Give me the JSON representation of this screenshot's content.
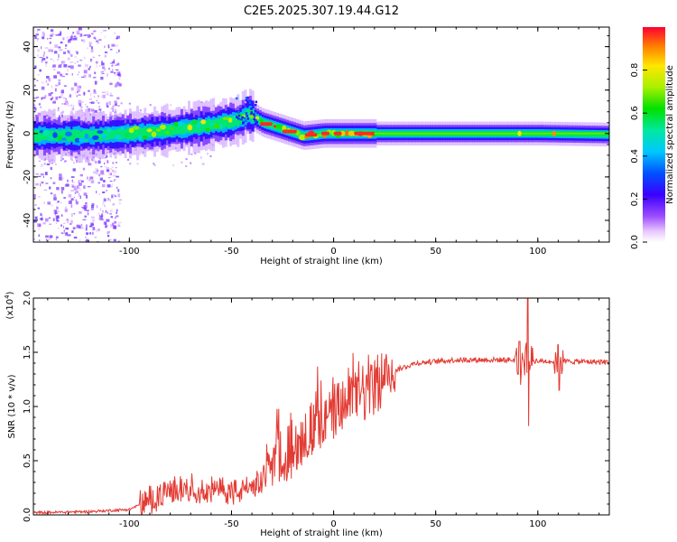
{
  "title": "C2E5.2025.307.19.44.G12",
  "chart_data": [
    {
      "type": "heatmap",
      "xlabel": "Height of straight line (km)",
      "ylabel": "Frequency (Hz)",
      "xlim": [
        -147,
        135
      ],
      "ylim": [
        -50,
        49
      ],
      "x_ticks": [
        -100,
        -50,
        0,
        50,
        100
      ],
      "y_ticks": [
        -40,
        -20,
        0,
        20,
        40
      ],
      "colorbar": {
        "label": "Normalized spectral amplitude",
        "range": [
          0.0,
          1.0
        ],
        "ticks": [
          "0.0",
          "0.2",
          "0.4",
          "0.6",
          "0.8"
        ],
        "tick_values": [
          0.0,
          0.2,
          0.4,
          0.6,
          0.8
        ]
      },
      "ridge_centroid": [
        {
          "x": -145,
          "y": -1
        },
        {
          "x": -120,
          "y": -1
        },
        {
          "x": -100,
          "y": 0
        },
        {
          "x": -80,
          "y": 1.5
        },
        {
          "x": -60,
          "y": 4
        },
        {
          "x": -47,
          "y": 6
        },
        {
          "x": -42,
          "y": 9
        },
        {
          "x": -35,
          "y": 5
        },
        {
          "x": -25,
          "y": 2
        },
        {
          "x": -15,
          "y": -1
        },
        {
          "x": -5,
          "y": 0
        },
        {
          "x": 10,
          "y": 0
        },
        {
          "x": 50,
          "y": 0
        },
        {
          "x": 100,
          "y": 0
        },
        {
          "x": 135,
          "y": -0.5
        }
      ]
    },
    {
      "type": "line",
      "xlabel": "Height of straight line (km)",
      "ylabel": "SNR (10 * v/v)",
      "y_multiplier": "(x10",
      "y_multiplier_exp": "4",
      "xlim": [
        -147,
        135
      ],
      "ylim": [
        0,
        2.0
      ],
      "x_ticks": [
        -100,
        -50,
        0,
        50,
        100
      ],
      "y_ticks": [
        "0.0",
        "0.5",
        "1.0",
        "1.5",
        "2.0"
      ],
      "y_tick_values": [
        0.0,
        0.5,
        1.0,
        1.5,
        2.0
      ],
      "series": [
        {
          "color": "#e33b33",
          "trend": [
            {
              "x": -147,
              "y": 0.02
            },
            {
              "x": -120,
              "y": 0.03
            },
            {
              "x": -100,
              "y": 0.05
            },
            {
              "x": -85,
              "y": 0.18
            },
            {
              "x": -75,
              "y": 0.25
            },
            {
              "x": -60,
              "y": 0.22
            },
            {
              "x": -45,
              "y": 0.22
            },
            {
              "x": -35,
              "y": 0.3
            },
            {
              "x": -30,
              "y": 0.55
            },
            {
              "x": -20,
              "y": 0.65
            },
            {
              "x": -10,
              "y": 0.8
            },
            {
              "x": 0,
              "y": 0.95
            },
            {
              "x": 10,
              "y": 1.08
            },
            {
              "x": 20,
              "y": 1.2
            },
            {
              "x": 28,
              "y": 1.32
            },
            {
              "x": 40,
              "y": 1.4
            },
            {
              "x": 60,
              "y": 1.43
            },
            {
              "x": 85,
              "y": 1.43
            },
            {
              "x": 100,
              "y": 1.42
            },
            {
              "x": 135,
              "y": 1.41
            }
          ],
          "spikes": [
            {
              "x": 95,
              "y_max": 2.0,
              "y_min": 0.82
            },
            {
              "x": 91,
              "y_max": 1.6,
              "y_min": 1.2
            },
            {
              "x": 110,
              "y_max": 1.57,
              "y_min": 1.15
            }
          ]
        }
      ]
    }
  ]
}
